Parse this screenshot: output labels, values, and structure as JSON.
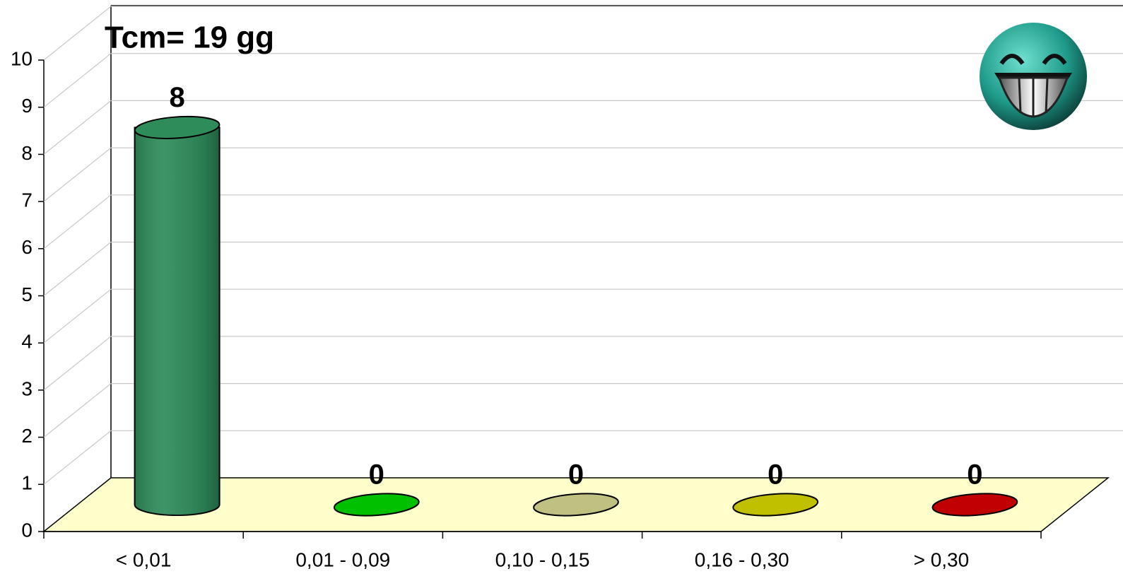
{
  "chart_data": {
    "type": "bar3d-cylinder",
    "title": "Tcm= 19 gg",
    "categories": [
      "< 0,01",
      "0,01 - 0,09",
      "0,10 - 0,15",
      "0,16 - 0,30",
      "> 0,30"
    ],
    "values": [
      8,
      0,
      0,
      0,
      0
    ],
    "colors": [
      "#2e8b5a",
      "#00c000",
      "#c0c080",
      "#c0c000",
      "#c00000"
    ],
    "ylim": [
      0,
      10
    ],
    "yticks": [
      0,
      1,
      2,
      3,
      4,
      5,
      6,
      7,
      8,
      9,
      10
    ],
    "grid": true
  }
}
